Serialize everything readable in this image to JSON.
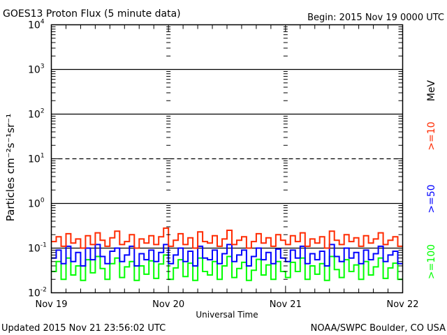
{
  "chart_data": {
    "type": "line",
    "title": "GOES13 Proton Flux (5 minute data)",
    "begin_label": "Begin: 2015 Nov 19 0000 UTC",
    "xlabel": "Universal Time",
    "ylabel": "Particles cm⁻²s⁻¹sr⁻¹",
    "yscale": "log",
    "ylim": [
      0.01,
      10000
    ],
    "y_ticks": [
      {
        "base": "10",
        "exp": "-2",
        "value": 0.01
      },
      {
        "base": "10",
        "exp": "-1",
        "value": 0.1
      },
      {
        "base": "10",
        "exp": "0",
        "value": 1
      },
      {
        "base": "10",
        "exp": "1",
        "value": 10
      },
      {
        "base": "10",
        "exp": "2",
        "value": 100
      },
      {
        "base": "10",
        "exp": "3",
        "value": 1000
      },
      {
        "base": "10",
        "exp": "4",
        "value": 10000
      }
    ],
    "x_range_hours": [
      0,
      72
    ],
    "x_ticks": [
      {
        "label": "Nov 19",
        "hours": 0
      },
      {
        "label": "Nov 20",
        "hours": 24
      },
      {
        "label": "Nov 21",
        "hours": 48
      },
      {
        "label": "Nov 22",
        "hours": 72
      }
    ],
    "x_start_hours": 0,
    "x_step_hours": 1,
    "unit_label": "MeV",
    "series": [
      {
        "name": ">=10",
        "color": "#ff2a00",
        "values": [
          0.14,
          0.18,
          0.11,
          0.21,
          0.13,
          0.16,
          0.1,
          0.19,
          0.12,
          0.22,
          0.15,
          0.11,
          0.17,
          0.24,
          0.12,
          0.14,
          0.2,
          0.1,
          0.16,
          0.13,
          0.19,
          0.12,
          0.18,
          0.28,
          0.11,
          0.15,
          0.21,
          0.12,
          0.17,
          0.1,
          0.23,
          0.14,
          0.13,
          0.19,
          0.11,
          0.16,
          0.25,
          0.12,
          0.15,
          0.18,
          0.1,
          0.14,
          0.21,
          0.13,
          0.17,
          0.11,
          0.2,
          0.15,
          0.12,
          0.19,
          0.14,
          0.22,
          0.11,
          0.16,
          0.13,
          0.18,
          0.1,
          0.24,
          0.15,
          0.12,
          0.2,
          0.14,
          0.17,
          0.11,
          0.19,
          0.13,
          0.16,
          0.22,
          0.12,
          0.15,
          0.18,
          0.11
        ]
      },
      {
        "name": ">=50",
        "color": "#0000ff",
        "values": [
          0.06,
          0.09,
          0.045,
          0.11,
          0.05,
          0.08,
          0.04,
          0.1,
          0.055,
          0.12,
          0.065,
          0.045,
          0.085,
          0.1,
          0.05,
          0.07,
          0.11,
          0.04,
          0.075,
          0.055,
          0.09,
          0.05,
          0.08,
          0.12,
          0.045,
          0.07,
          0.1,
          0.05,
          0.085,
          0.04,
          0.11,
          0.06,
          0.055,
          0.09,
          0.045,
          0.075,
          0.12,
          0.05,
          0.07,
          0.09,
          0.04,
          0.065,
          0.1,
          0.055,
          0.08,
          0.045,
          0.095,
          0.06,
          0.05,
          0.09,
          0.06,
          0.11,
          0.045,
          0.075,
          0.055,
          0.085,
          0.04,
          0.12,
          0.065,
          0.05,
          0.1,
          0.06,
          0.08,
          0.045,
          0.09,
          0.055,
          0.075,
          0.11,
          0.05,
          0.07,
          0.085,
          0.045
        ]
      },
      {
        "name": ">=100",
        "color": "#00ff00",
        "values": [
          0.03,
          0.05,
          0.02,
          0.06,
          0.025,
          0.04,
          0.019,
          0.055,
          0.028,
          0.065,
          0.035,
          0.02,
          0.045,
          0.06,
          0.022,
          0.038,
          0.05,
          0.019,
          0.04,
          0.026,
          0.052,
          0.021,
          0.044,
          0.07,
          0.02,
          0.036,
          0.055,
          0.023,
          0.046,
          0.019,
          0.06,
          0.03,
          0.025,
          0.05,
          0.02,
          0.04,
          0.065,
          0.022,
          0.035,
          0.048,
          0.019,
          0.032,
          0.056,
          0.025,
          0.042,
          0.02,
          0.05,
          0.03,
          0.022,
          0.048,
          0.03,
          0.06,
          0.02,
          0.04,
          0.026,
          0.045,
          0.019,
          0.065,
          0.033,
          0.022,
          0.055,
          0.03,
          0.042,
          0.02,
          0.05,
          0.025,
          0.038,
          0.06,
          0.021,
          0.036,
          0.046,
          0.02
        ]
      }
    ]
  },
  "footer": {
    "updated": "Updated 2015 Nov 21 23:56:02 UTC",
    "source": "NOAA/SWPC Boulder, CO USA"
  }
}
